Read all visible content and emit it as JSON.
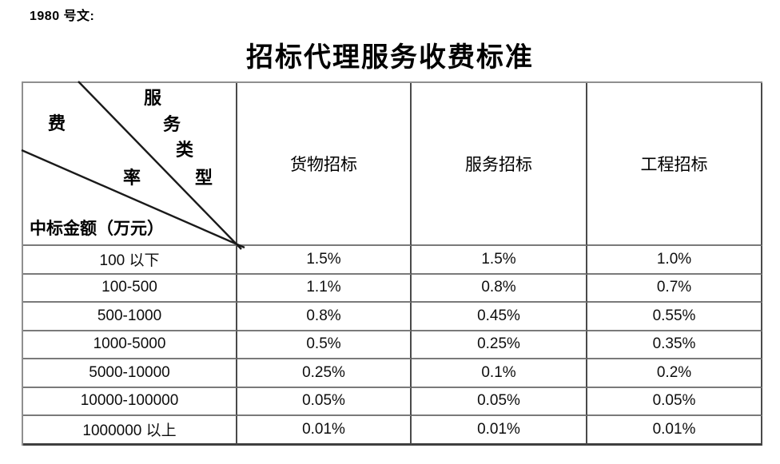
{
  "page": {
    "doc_number": "1980 号文:",
    "title": "招标代理服务收费标准"
  },
  "table": {
    "corner": {
      "axis_fee_rate_chars": [
        "费",
        "率"
      ],
      "axis_service_type_chars": [
        "服",
        "务",
        "类",
        "型"
      ],
      "row_axis_label": "中标金额（万元）"
    },
    "column_headers": [
      "货物招标",
      "服务招标",
      "工程招标"
    ],
    "rows": [
      {
        "amount_range": "100 以下",
        "rates": [
          "1.5%",
          "1.5%",
          "1.0%"
        ]
      },
      {
        "amount_range": "100-500",
        "rates": [
          "1.1%",
          "0.8%",
          "0.7%"
        ]
      },
      {
        "amount_range": "500-1000",
        "rates": [
          "0.8%",
          "0.45%",
          "0.55%"
        ]
      },
      {
        "amount_range": "1000-5000",
        "rates": [
          "0.5%",
          "0.25%",
          "0.35%"
        ]
      },
      {
        "amount_range": "5000-10000",
        "rates": [
          "0.25%",
          "0.1%",
          "0.2%"
        ]
      },
      {
        "amount_range": "10000-100000",
        "rates": [
          "0.05%",
          "0.05%",
          "0.05%"
        ]
      },
      {
        "amount_range": "1000000 以上",
        "rates": [
          "0.01%",
          "0.01%",
          "0.01%"
        ]
      }
    ],
    "style": {
      "horizontal_line_color": "#7a7a7a",
      "vertical_line_color": "#4a4a4a",
      "diagonal_line_color": "#1a1a1a",
      "text_color": "#000000",
      "background": "#ffffff"
    }
  }
}
